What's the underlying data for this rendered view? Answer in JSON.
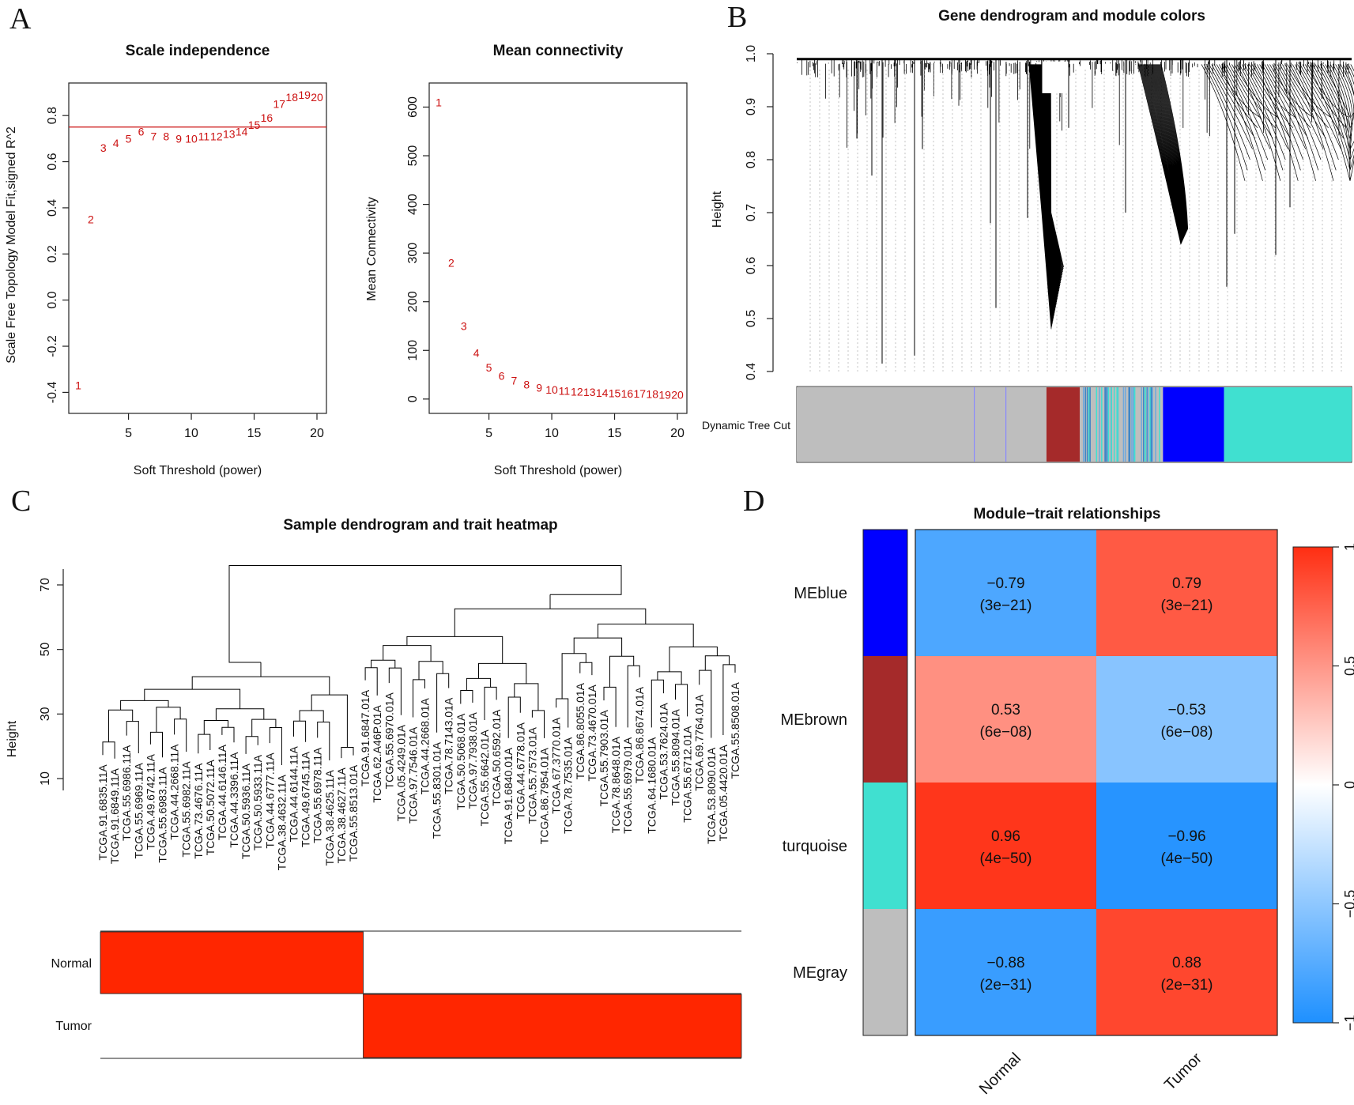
{
  "panels": {
    "A": {
      "label": "A"
    },
    "B": {
      "label": "B"
    },
    "C": {
      "label": "C"
    },
    "D": {
      "label": "D"
    }
  },
  "chart_data": [
    {
      "id": "scale_independence",
      "type": "scatter",
      "title": "Scale independence",
      "xlabel": "Soft Threshold (power)",
      "ylabel": "Scale Free Topology Model Fit,signed R^2",
      "x": [
        1,
        2,
        3,
        4,
        5,
        6,
        7,
        8,
        9,
        10,
        11,
        12,
        13,
        14,
        15,
        16,
        17,
        18,
        19,
        20
      ],
      "y": [
        -0.37,
        0.35,
        0.66,
        0.68,
        0.7,
        0.73,
        0.71,
        0.71,
        0.7,
        0.7,
        0.71,
        0.71,
        0.72,
        0.73,
        0.76,
        0.79,
        0.85,
        0.88,
        0.89,
        0.88
      ],
      "point_labels": [
        "1",
        "2",
        "3",
        "4",
        "5",
        "6",
        "7",
        "8",
        "9",
        "10",
        "11",
        "12",
        "13",
        "14",
        "15",
        "16",
        "17",
        "18",
        "19",
        "20"
      ],
      "xlim": [
        1,
        20
      ],
      "ylim": [
        -0.45,
        0.9
      ],
      "xticks": [
        "5",
        "10",
        "15",
        "20"
      ],
      "yticks": [
        "-0.4",
        "-0.2",
        "0.0",
        "0.2",
        "0.4",
        "0.6",
        "0.8"
      ],
      "hline": 0.75,
      "color": "#cc1111"
    },
    {
      "id": "mean_connectivity",
      "type": "scatter",
      "title": "Mean connectivity",
      "xlabel": "Soft Threshold (power)",
      "ylabel": "Mean Connectivity",
      "x": [
        1,
        2,
        3,
        4,
        5,
        6,
        7,
        8,
        9,
        10,
        11,
        12,
        13,
        14,
        15,
        16,
        17,
        18,
        19,
        20
      ],
      "y": [
        610,
        280,
        150,
        95,
        65,
        48,
        38,
        30,
        23,
        19,
        17,
        15,
        14,
        13,
        12,
        11,
        11,
        10,
        9,
        9
      ],
      "point_labels": [
        "1",
        "2",
        "3",
        "4",
        "5",
        "6",
        "7",
        "8",
        "9",
        "10",
        "11",
        "12",
        "13",
        "14",
        "15",
        "16",
        "17",
        "18",
        "19",
        "20"
      ],
      "xlim": [
        1,
        20
      ],
      "ylim": [
        -10,
        630
      ],
      "xticks": [
        "5",
        "10",
        "15",
        "20"
      ],
      "yticks": [
        "0",
        "100",
        "200",
        "300",
        "400",
        "500",
        "600"
      ],
      "color": "#cc1111"
    },
    {
      "id": "gene_dendrogram",
      "type": "dendrogram",
      "title": "Gene dendrogram and module colors",
      "ylabel": "Height",
      "ylim": [
        0.4,
        1.0
      ],
      "yticks": [
        "0.4",
        "0.5",
        "0.6",
        "0.7",
        "0.8",
        "0.9",
        "1.0"
      ],
      "color_bar_label": "Dynamic Tree Cut",
      "modules": [
        {
          "name": "gray",
          "color": "#bebebe",
          "fraction": 0.45
        },
        {
          "name": "brown",
          "color": "#a52a2a",
          "fraction": 0.06
        },
        {
          "name": "mixed",
          "color": "#bebebe",
          "fraction": 0.15
        },
        {
          "name": "blue",
          "color": "#0000ff",
          "fraction": 0.11
        },
        {
          "name": "turquoise",
          "color": "#40e0d0",
          "fraction": 0.23
        }
      ]
    },
    {
      "id": "sample_dendrogram",
      "type": "dendrogram",
      "title": "Sample dendrogram and trait heatmap",
      "ylabel": "Height",
      "ylim": [
        10,
        75
      ],
      "yticks": [
        "10",
        "30",
        "50",
        "70"
      ],
      "traits": [
        "Normal",
        "Tumor"
      ],
      "trait_color": "#ff2600",
      "normal_fraction": 0.41,
      "sample_labels": [
        "TCGA.91.6835.11A",
        "TCGA.91.6849.11A",
        "TCGA.55.6986.11A",
        "TCGA.55.6969.11A",
        "TCGA.49.6742.11A",
        "TCGA.55.6983.11A",
        "TCGA.44.2668.11A",
        "TCGA.55.6982.11A",
        "TCGA.73.4676.11A",
        "TCGA.50.5072.11A",
        "TCGA.44.6146.11A",
        "TCGA.44.3396.11A",
        "TCGA.50.5936.11A",
        "TCGA.50.5933.11A",
        "TCGA.44.6777.11A",
        "TCGA.38.4632.11A",
        "TCGA.44.6144.11A",
        "TCGA.49.6745.11A",
        "TCGA.55.6978.11A",
        "TCGA.38.4625.11A",
        "TCGA.38.4627.11A",
        "TCGA.55.8513.01A",
        "TCGA.91.6847.01A",
        "TCGA.62.A46P.01A",
        "TCGA.55.6970.01A",
        "TCGA.05.4249.01A",
        "TCGA.97.7546.01A",
        "TCGA.44.2668.01A",
        "TCGA.55.8301.01A",
        "TCGA.78.7143.01A",
        "TCGA.50.5068.01A",
        "TCGA.97.7938.01A",
        "TCGA.55.6642.01A",
        "TCGA.50.6592.01A",
        "TCGA.91.6840.01A",
        "TCGA.44.6778.01A",
        "TCGA.55.7573.01A",
        "TCGA.86.7954.01A",
        "TCGA.67.3770.01A",
        "TCGA.78.7535.01A",
        "TCGA.86.8055.01A",
        "TCGA.73.4670.01A",
        "TCGA.55.7903.01A",
        "TCGA.78.8648.01A",
        "TCGA.55.6979.01A",
        "TCGA.86.8674.01A",
        "TCGA.64.1680.01A",
        "TCGA.53.7624.01A",
        "TCGA.55.8094.01A",
        "TCGA.55.6712.01A",
        "TCGA.69.7764.01A",
        "TCGA.53.8090.01A",
        "TCGA.05.4420.01A",
        "TCGA.55.8508.01A"
      ]
    },
    {
      "id": "module_trait",
      "type": "heatmap",
      "title": "Module−trait relationships",
      "rows": [
        "MEblue",
        "MEbrown",
        "turquoise",
        "MEgray"
      ],
      "row_colors": [
        "#0000ff",
        "#a52a2a",
        "#40e0d0",
        "#bebebe"
      ],
      "columns": [
        "Normal",
        "Tumor"
      ],
      "values": [
        [
          -0.79,
          0.79
        ],
        [
          0.53,
          -0.53
        ],
        [
          0.96,
          -0.96
        ],
        [
          -0.88,
          0.88
        ]
      ],
      "value_labels": [
        [
          "−0.79",
          "0.79"
        ],
        [
          "0.53",
          "−0.53"
        ],
        [
          "0.96",
          "−0.96"
        ],
        [
          "−0.88",
          "0.88"
        ]
      ],
      "pvalues": [
        [
          "(3e−21)",
          "(3e−21)"
        ],
        [
          "(6e−08)",
          "(6e−08)"
        ],
        [
          "(4e−50)",
          "(4e−50)"
        ],
        [
          "(2e−31)",
          "(2e−31)"
        ]
      ],
      "colorbar_range": [
        -1,
        1
      ],
      "colorbar_ticks": [
        "1",
        "0.5",
        "0",
        "−0.5",
        "−1"
      ]
    }
  ]
}
